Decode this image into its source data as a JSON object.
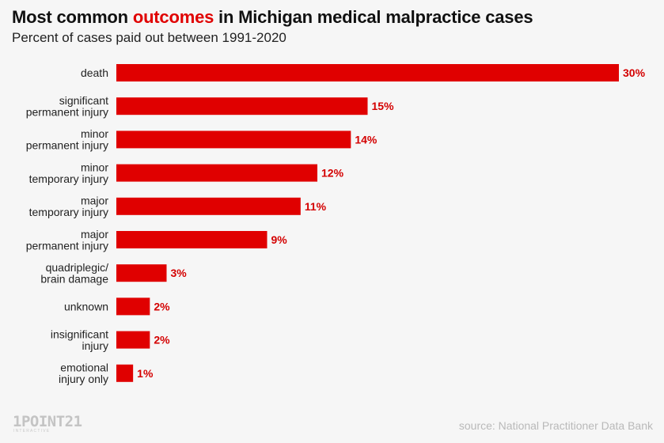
{
  "header": {
    "title_pre": "Most common ",
    "title_highlight": "outcomes",
    "title_post": " in Michigan medical malpractice cases",
    "subtitle": "Percent of cases paid out between 1991-2020"
  },
  "footer": {
    "logo_text": "1POINT21",
    "logo_sub": "INTERACTIVE",
    "source": "source: National Practitioner Data Bank"
  },
  "colors": {
    "bar": "#e00000",
    "label": "#d40000",
    "background": "#f6f6f6"
  },
  "chart_data": {
    "type": "bar",
    "orientation": "horizontal",
    "categories": [
      [
        "death"
      ],
      [
        "significant",
        "permanent injury"
      ],
      [
        "minor",
        "permanent injury"
      ],
      [
        "minor",
        "temporary injury"
      ],
      [
        "major",
        "temporary injury"
      ],
      [
        "major",
        "permanent injury"
      ],
      [
        "quadriplegic/",
        "brain damage"
      ],
      [
        "unknown"
      ],
      [
        "insignificant",
        "injury"
      ],
      [
        "emotional",
        "injury only"
      ]
    ],
    "values": [
      30,
      15,
      14,
      12,
      11,
      9,
      3,
      2,
      2,
      1
    ],
    "value_labels": [
      "30%",
      "15%",
      "14%",
      "12%",
      "11%",
      "9%",
      "3%",
      "2%",
      "2%",
      "1%"
    ],
    "unit": "%"
  }
}
